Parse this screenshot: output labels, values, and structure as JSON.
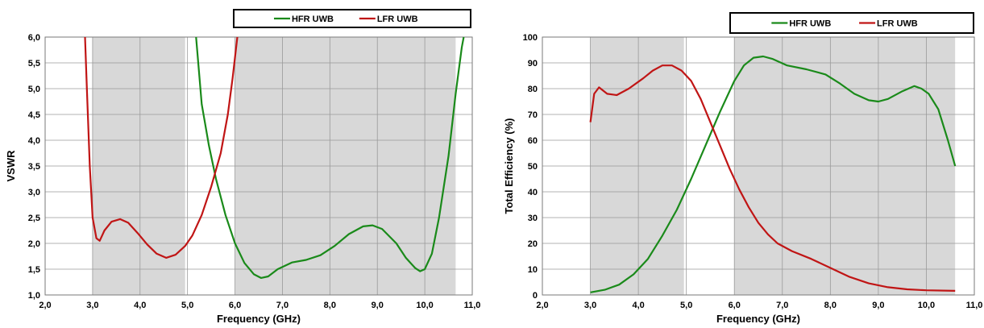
{
  "chart_data": [
    {
      "type": "line",
      "xlabel": "Frequency (GHz)",
      "ylabel": "VSWR",
      "xlim": [
        2.0,
        11.0
      ],
      "ylim": [
        1.0,
        6.0
      ],
      "x_ticks": [
        "2,0",
        "3,0",
        "4,0",
        "5,0",
        "6,0",
        "7,0",
        "8,0",
        "9,0",
        "10,0",
        "11,0"
      ],
      "y_ticks": [
        "1,0",
        "1,5",
        "2,0",
        "2,5",
        "3,0",
        "3,5",
        "4,0",
        "4,5",
        "5,0",
        "5,5",
        "6,0"
      ],
      "shaded_bands": [
        [
          3.0,
          4.95
        ],
        [
          6.0,
          10.65
        ]
      ],
      "grid": true,
      "legend_position": "top",
      "series": [
        {
          "name": "HFR UWB",
          "color": "#1a8a1a",
          "points": [
            [
              5.18,
              6.0
            ],
            [
              5.3,
              4.7
            ],
            [
              5.45,
              3.9
            ],
            [
              5.6,
              3.25
            ],
            [
              5.8,
              2.55
            ],
            [
              6.0,
              2.0
            ],
            [
              6.2,
              1.62
            ],
            [
              6.4,
              1.4
            ],
            [
              6.55,
              1.33
            ],
            [
              6.7,
              1.36
            ],
            [
              6.9,
              1.5
            ],
            [
              7.2,
              1.63
            ],
            [
              7.5,
              1.68
            ],
            [
              7.8,
              1.77
            ],
            [
              8.1,
              1.95
            ],
            [
              8.4,
              2.18
            ],
            [
              8.7,
              2.33
            ],
            [
              8.9,
              2.35
            ],
            [
              9.1,
              2.28
            ],
            [
              9.4,
              2.0
            ],
            [
              9.6,
              1.72
            ],
            [
              9.8,
              1.52
            ],
            [
              9.9,
              1.46
            ],
            [
              10.0,
              1.5
            ],
            [
              10.15,
              1.8
            ],
            [
              10.3,
              2.5
            ],
            [
              10.5,
              3.7
            ],
            [
              10.65,
              4.9
            ],
            [
              10.78,
              5.8
            ],
            [
              10.82,
              6.0
            ]
          ]
        },
        {
          "name": "LFR UWB",
          "color": "#c01515",
          "points": [
            [
              2.84,
              6.0
            ],
            [
              2.88,
              5.0
            ],
            [
              2.94,
              3.5
            ],
            [
              3.0,
              2.5
            ],
            [
              3.08,
              2.1
            ],
            [
              3.15,
              2.05
            ],
            [
              3.25,
              2.25
            ],
            [
              3.4,
              2.42
            ],
            [
              3.58,
              2.47
            ],
            [
              3.75,
              2.4
            ],
            [
              3.95,
              2.2
            ],
            [
              4.15,
              1.98
            ],
            [
              4.35,
              1.8
            ],
            [
              4.55,
              1.72
            ],
            [
              4.75,
              1.78
            ],
            [
              4.95,
              1.95
            ],
            [
              5.1,
              2.15
            ],
            [
              5.3,
              2.55
            ],
            [
              5.5,
              3.1
            ],
            [
              5.7,
              3.75
            ],
            [
              5.85,
              4.5
            ],
            [
              5.95,
              5.2
            ],
            [
              6.05,
              6.0
            ]
          ]
        }
      ]
    },
    {
      "type": "line",
      "xlabel": "Frequency (GHz)",
      "ylabel": "Total  Efficiency (%)",
      "xlim": [
        2.0,
        11.0
      ],
      "ylim": [
        0,
        100
      ],
      "x_ticks": [
        "2,0",
        "3,0",
        "4,0",
        "5,0",
        "6,0",
        "7,0",
        "8,0",
        "9,0",
        "10,0",
        "11,0"
      ],
      "y_ticks": [
        "0",
        "10",
        "20",
        "30",
        "40",
        "50",
        "60",
        "70",
        "80",
        "90",
        "100"
      ],
      "shaded_bands": [
        [
          3.0,
          4.95
        ],
        [
          6.0,
          10.6
        ]
      ],
      "grid": true,
      "legend_position": "top",
      "series": [
        {
          "name": "HFR UWB",
          "color": "#1a8a1a",
          "points": [
            [
              3.0,
              1
            ],
            [
              3.3,
              2
            ],
            [
              3.6,
              4
            ],
            [
              3.9,
              8
            ],
            [
              4.2,
              14
            ],
            [
              4.5,
              23
            ],
            [
              4.8,
              33
            ],
            [
              5.1,
              45
            ],
            [
              5.4,
              58
            ],
            [
              5.7,
              71
            ],
            [
              6.0,
              83
            ],
            [
              6.2,
              89
            ],
            [
              6.4,
              92
            ],
            [
              6.6,
              92.5
            ],
            [
              6.8,
              91.5
            ],
            [
              7.1,
              89
            ],
            [
              7.5,
              87.5
            ],
            [
              7.9,
              85.5
            ],
            [
              8.2,
              82
            ],
            [
              8.5,
              78
            ],
            [
              8.8,
              75.5
            ],
            [
              9.0,
              75
            ],
            [
              9.2,
              76
            ],
            [
              9.5,
              79
            ],
            [
              9.75,
              81
            ],
            [
              9.9,
              80
            ],
            [
              10.05,
              78
            ],
            [
              10.25,
              72
            ],
            [
              10.45,
              60
            ],
            [
              10.6,
              50
            ]
          ]
        },
        {
          "name": "LFR UWB",
          "color": "#c01515",
          "points": [
            [
              3.0,
              67
            ],
            [
              3.08,
              78
            ],
            [
              3.18,
              80.5
            ],
            [
              3.35,
              78
            ],
            [
              3.55,
              77.5
            ],
            [
              3.8,
              80
            ],
            [
              4.1,
              84
            ],
            [
              4.3,
              87
            ],
            [
              4.5,
              89
            ],
            [
              4.7,
              89
            ],
            [
              4.9,
              87
            ],
            [
              5.1,
              83
            ],
            [
              5.3,
              76
            ],
            [
              5.5,
              67
            ],
            [
              5.7,
              58
            ],
            [
              5.9,
              49
            ],
            [
              6.1,
              41
            ],
            [
              6.3,
              34
            ],
            [
              6.5,
              28
            ],
            [
              6.7,
              23.5
            ],
            [
              6.9,
              20
            ],
            [
              7.2,
              17
            ],
            [
              7.6,
              14
            ],
            [
              8.0,
              10.5
            ],
            [
              8.4,
              7
            ],
            [
              8.8,
              4.5
            ],
            [
              9.2,
              3
            ],
            [
              9.6,
              2.2
            ],
            [
              10.0,
              1.8
            ],
            [
              10.6,
              1.6
            ]
          ]
        }
      ]
    }
  ]
}
